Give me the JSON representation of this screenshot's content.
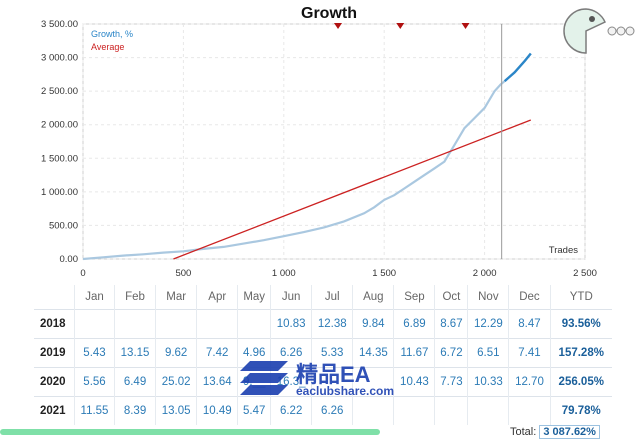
{
  "chart_data": {
    "type": "line",
    "title": "Growth",
    "xlabel": "Trades",
    "xlim": [
      0,
      2500
    ],
    "ylim": [
      0,
      3500
    ],
    "x_ticks": [
      "0",
      "500",
      "1 000",
      "1 500",
      "2 000",
      "2 500"
    ],
    "x_tick_values": [
      0,
      500,
      1000,
      1500,
      2000,
      2500
    ],
    "y_ticks": [
      "0.00",
      "500.00",
      "1 000.00",
      "1 500.00",
      "2 000.00",
      "2 500.00",
      "3 000.00",
      "3 500.00"
    ],
    "y_tick_values": [
      0,
      500,
      1000,
      1500,
      2000,
      2500,
      3000,
      3500
    ],
    "legend_position": "top-left",
    "marker_x": 2085,
    "top_markers_x": [
      1270,
      1580,
      1905
    ],
    "series": [
      {
        "name": "Growth, %",
        "color": "#aac8e0",
        "highlight_color": "#2b86c8",
        "x": [
          0,
          100,
          200,
          300,
          400,
          500,
          600,
          700,
          800,
          900,
          1000,
          1100,
          1200,
          1300,
          1400,
          1450,
          1500,
          1550,
          1600,
          1650,
          1700,
          1750,
          1800,
          1850,
          1900,
          1950,
          2000,
          2050,
          2080,
          2100,
          2150,
          2200,
          2230
        ],
        "y": [
          0,
          25,
          50,
          70,
          95,
          115,
          150,
          180,
          230,
          280,
          340,
          400,
          470,
          560,
          680,
          770,
          880,
          950,
          1050,
          1150,
          1250,
          1350,
          1450,
          1700,
          1950,
          2100,
          2250,
          2500,
          2600,
          2650,
          2780,
          2950,
          3060
        ]
      },
      {
        "name": "Average",
        "color": "#cc2222",
        "x": [
          450,
          2230
        ],
        "y": [
          0,
          2070
        ]
      }
    ]
  },
  "table": {
    "headers": [
      "",
      "Jan",
      "Feb",
      "Mar",
      "Apr",
      "May",
      "Jun",
      "Jul",
      "Aug",
      "Sep",
      "Oct",
      "Nov",
      "Dec",
      "YTD"
    ],
    "rows": [
      [
        "2018",
        "",
        "",
        "",
        "",
        "",
        "10.83",
        "12.38",
        "9.84",
        "6.89",
        "8.67",
        "12.29",
        "8.47",
        "93.56%"
      ],
      [
        "2019",
        "5.43",
        "13.15",
        "9.62",
        "7.42",
        "4.96",
        "6.26",
        "5.33",
        "14.35",
        "11.67",
        "6.72",
        "6.51",
        "7.41",
        "157.28%"
      ],
      [
        "2020",
        "5.56",
        "6.49",
        "25.02",
        "13.64",
        "9.__",
        "16.3_",
        "",
        "",
        "10.43",
        "7.73",
        "10.33",
        "12.70",
        "256.05%"
      ],
      [
        "2021",
        "11.55",
        "8.39",
        "13.05",
        "10.49",
        "5.47",
        "6.22",
        "6.26",
        "",
        "",
        "",
        "",
        "",
        "79.78%"
      ]
    ],
    "total_label": "Total:",
    "total_value": "3 087.62%"
  },
  "watermark": {
    "cn": "精品EA",
    "url": "eaclubshare.com"
  }
}
